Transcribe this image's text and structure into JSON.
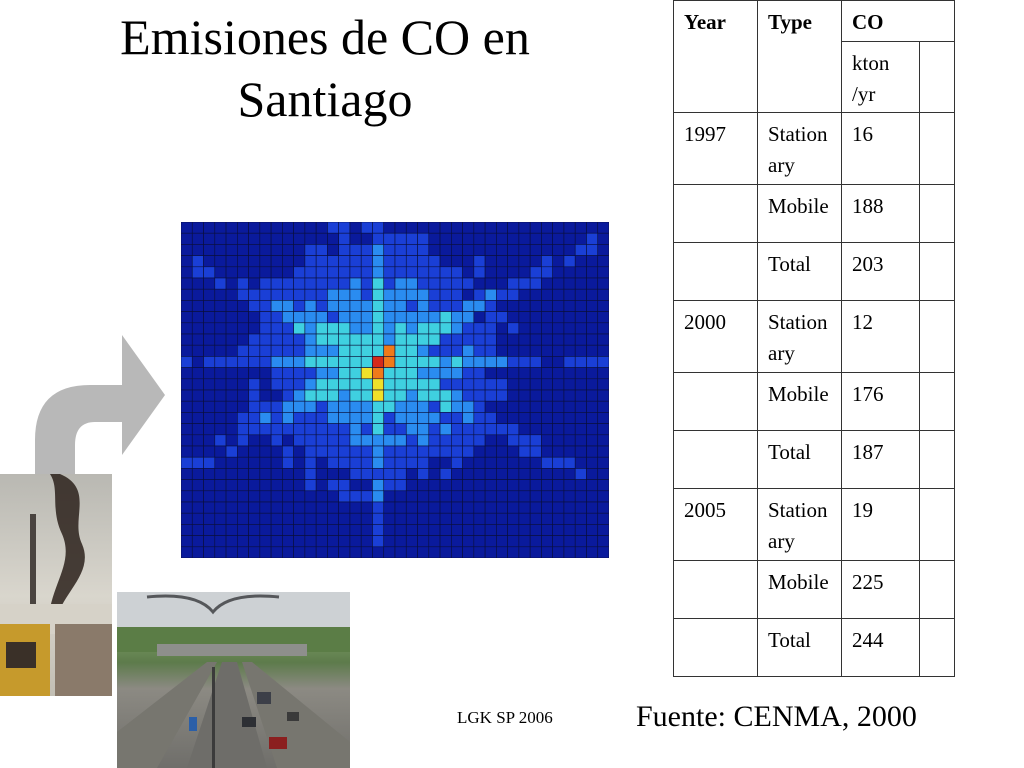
{
  "title": "Emisiones de CO en Santiago",
  "credit": "LGK SP 2006",
  "source": "Fuente: CENMA, 2000",
  "table": {
    "headers": {
      "year": "Year",
      "type": "Type",
      "co": "CO",
      "unit": "kton /yr"
    },
    "rows": [
      {
        "year": "1997",
        "type": "Station ary",
        "value": "16"
      },
      {
        "year": "",
        "type": "Mobile",
        "value": "188"
      },
      {
        "year": "",
        "type": "Total",
        "value": "203"
      },
      {
        "year": "2000",
        "type": "Station ary",
        "value": "12"
      },
      {
        "year": "",
        "type": "Mobile",
        "value": "176"
      },
      {
        "year": "",
        "type": "Total",
        "value": "187"
      },
      {
        "year": "2005",
        "type": "Station ary",
        "value": "19"
      },
      {
        "year": "",
        "type": "Mobile",
        "value": "225"
      },
      {
        "year": "",
        "type": "Total",
        "value": "244"
      }
    ]
  },
  "colors": {
    "background": "#0a1a9c",
    "low": "#1a3fd6",
    "mid": "#2a8cf0",
    "high": "#3fd0e0",
    "peak_yellow": "#f0e02a",
    "peak_orange": "#f07a1a",
    "peak_red": "#d42a1a",
    "arrow": "#b8b8b8"
  }
}
